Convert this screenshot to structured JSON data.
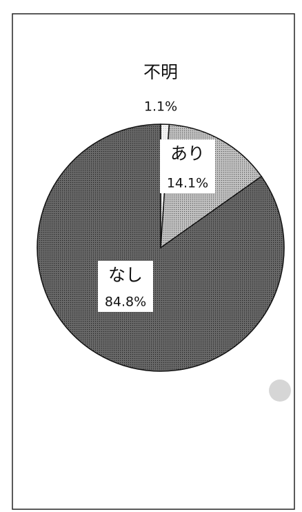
{
  "chart_data": {
    "type": "pie",
    "categories": [
      "不明",
      "あり",
      "なし"
    ],
    "values": [
      1.1,
      14.1,
      84.8
    ],
    "value_labels": [
      "1.1%",
      "14.1%",
      "84.8%"
    ],
    "colors": [
      "#f4f4f4",
      "#c4c4c4",
      "#6a6a6a"
    ]
  }
}
